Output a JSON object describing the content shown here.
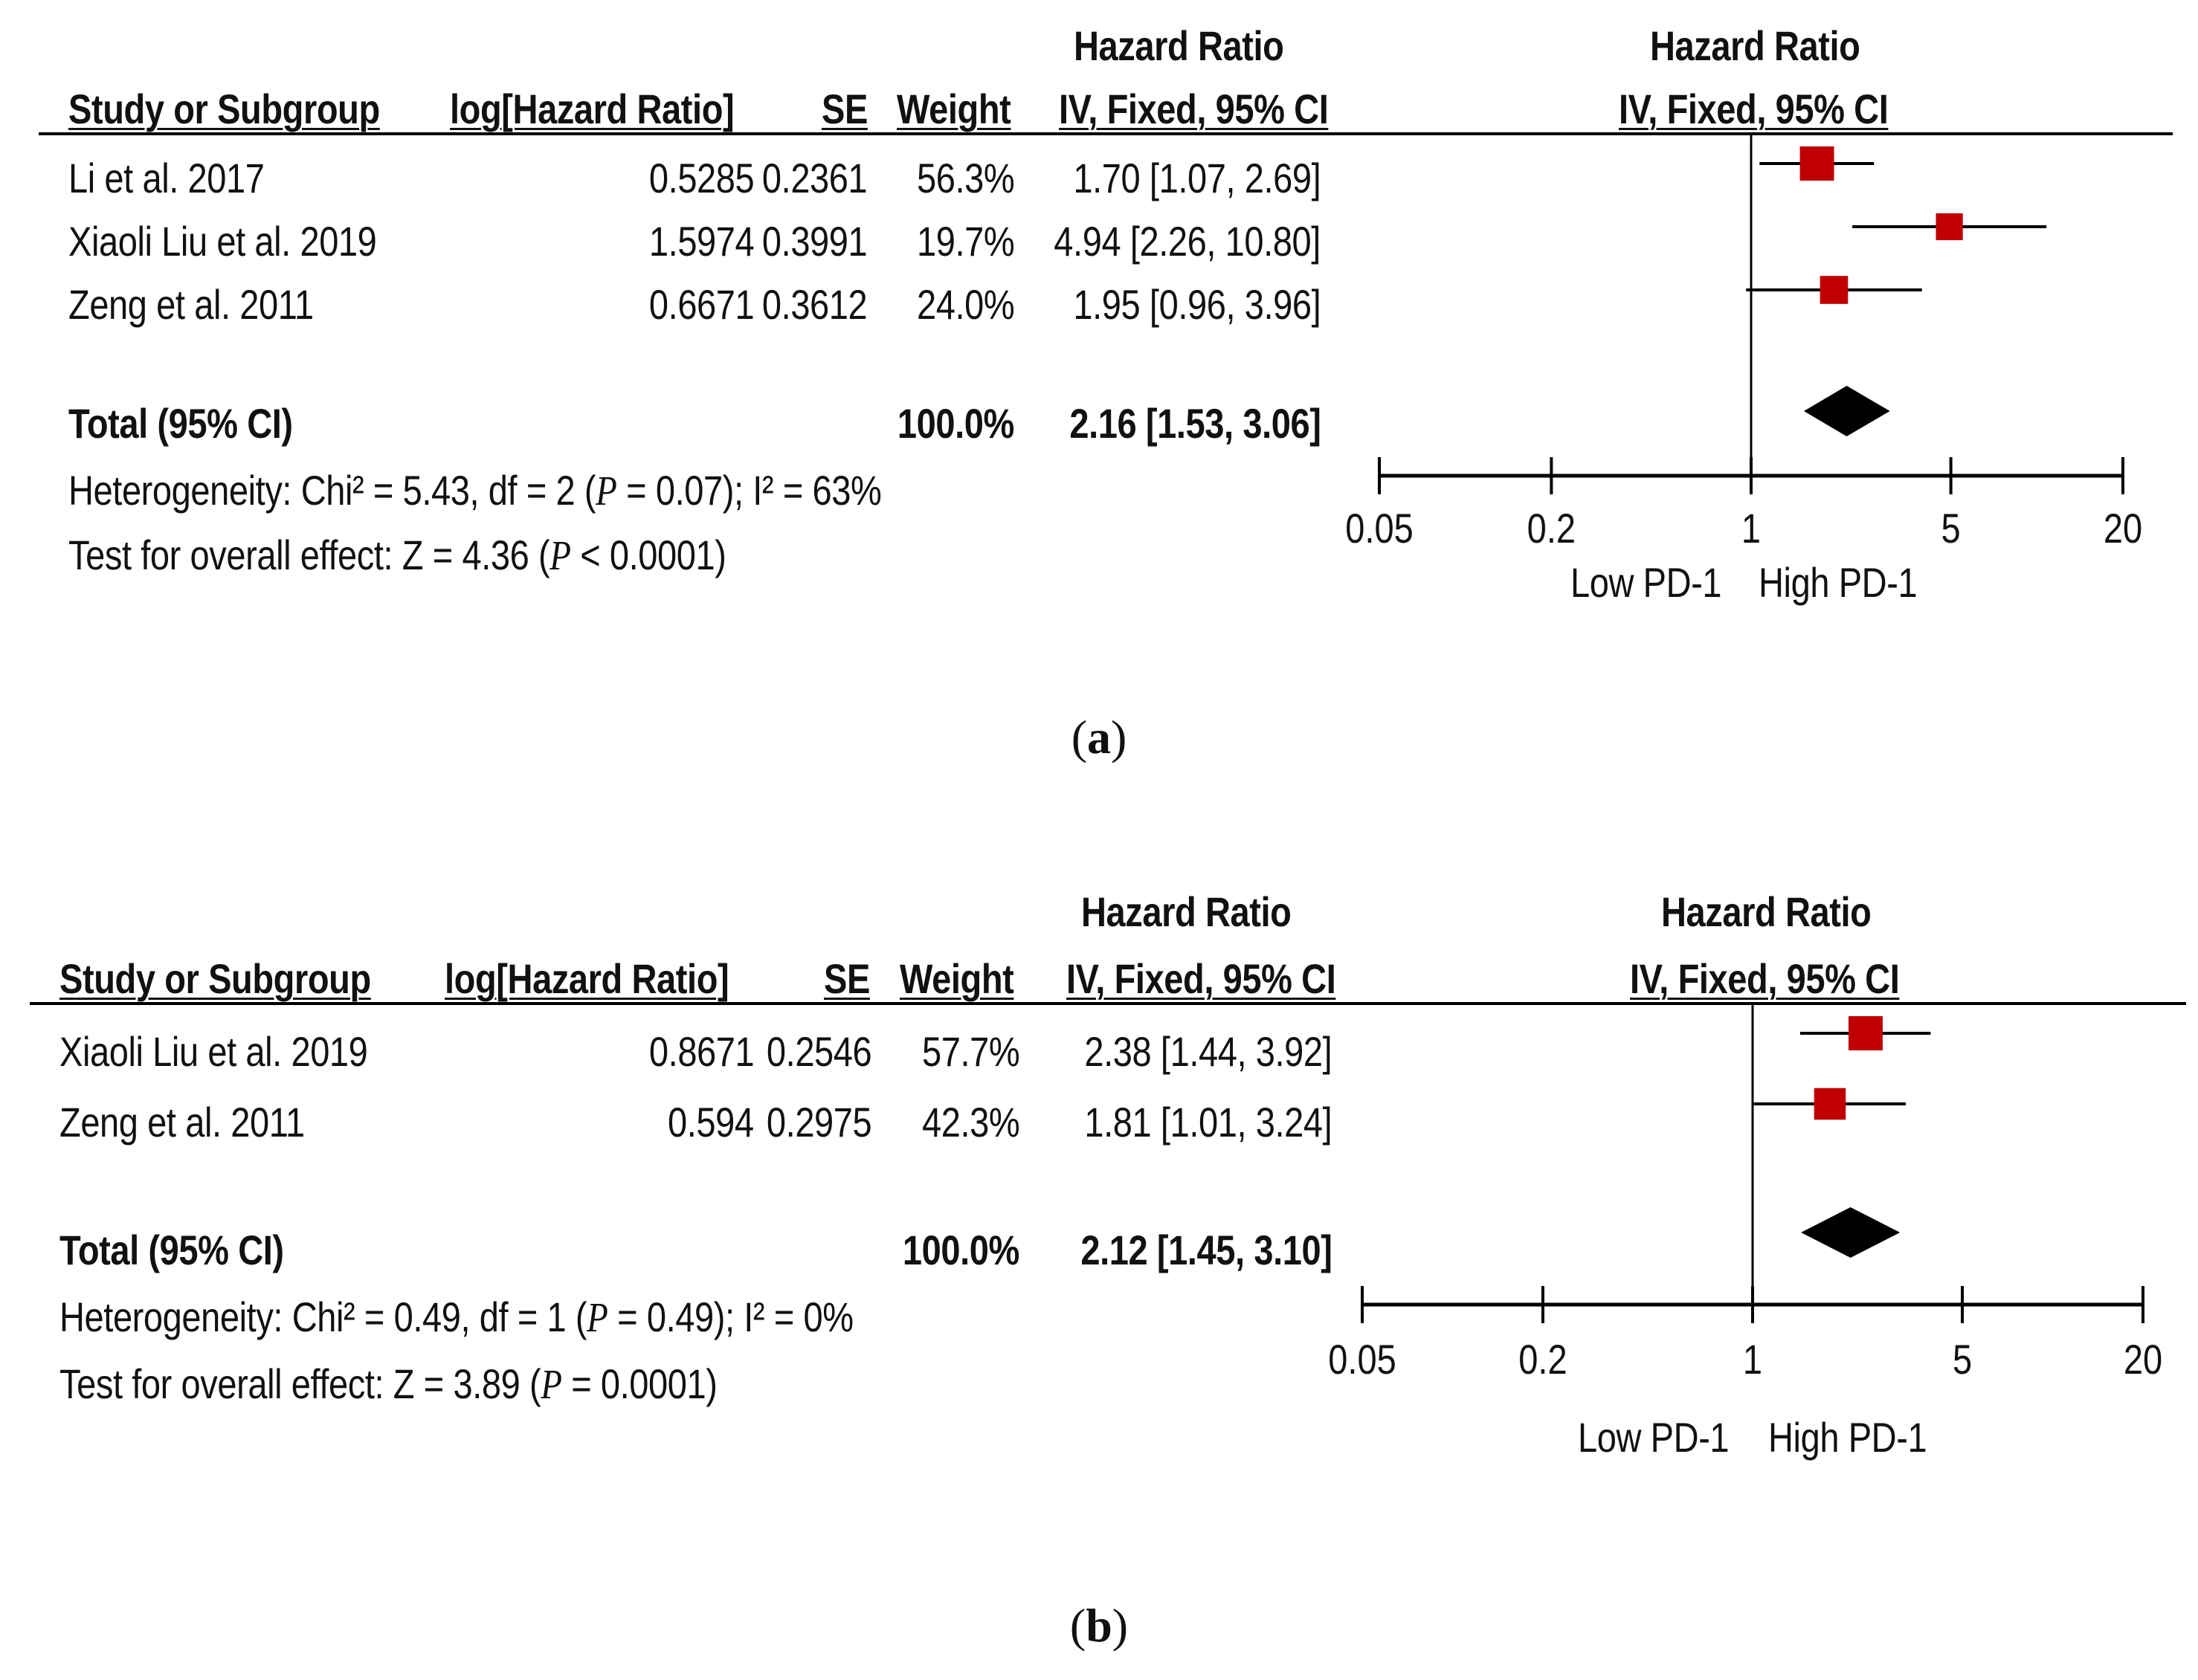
{
  "chart_data": [
    {
      "type": "forest",
      "caption": {
        "open": "(",
        "letter": "a",
        "close": ")"
      },
      "headers": {
        "hr_top": "Hazard Ratio",
        "study": "Study or Subgroup",
        "loghr": "log[Hazard Ratio]",
        "se": "SE",
        "weight": "Weight",
        "hr_ci": "IV, Fixed, 95% CI",
        "plot_top": "Hazard Ratio",
        "plot_sub": "IV, Fixed, 95% CI"
      },
      "studies": [
        {
          "name": "Li et al. 2017",
          "loghr": "0.5285",
          "se": "0.2361",
          "weight": "56.3%",
          "ci_text": "1.70 [1.07, 2.69]",
          "hr": 1.7,
          "lower": 1.07,
          "upper": 2.69,
          "weight_pct": 56.3
        },
        {
          "name": "Xiaoli Liu et al. 2019",
          "loghr": "1.5974",
          "se": "0.3991",
          "weight": "19.7%",
          "ci_text": "4.94 [2.26, 10.80]",
          "hr": 4.94,
          "lower": 2.26,
          "upper": 10.8,
          "weight_pct": 19.7
        },
        {
          "name": "Zeng et al. 2011",
          "loghr": "0.6671",
          "se": "0.3612",
          "weight": "24.0%",
          "ci_text": "1.95 [0.96, 3.96]",
          "hr": 1.95,
          "lower": 0.96,
          "upper": 3.96,
          "weight_pct": 24.0
        }
      ],
      "total": {
        "label": "Total (95% CI)",
        "weight": "100.0%",
        "ci_text": "2.16 [1.53, 3.06]",
        "hr": 2.16,
        "lower": 1.53,
        "upper": 3.06
      },
      "heterogeneity": {
        "pre": "Heterogeneity: Chi² = 5.43, df = 2 (",
        "p": "P",
        "post": " = 0.07); I² = 63%"
      },
      "overall": {
        "pre": "Test for overall effect: Z = 4.36 (",
        "p": "P",
        "post": " < 0.0001)"
      },
      "axis": {
        "scale": "log",
        "range": [
          0.05,
          20
        ],
        "ticks": [
          "0.05",
          "0.2",
          "1",
          "5",
          "20"
        ],
        "tick_values": [
          0.05,
          0.2,
          1,
          5,
          20
        ],
        "null_value": 1
      },
      "favours": {
        "left": "Low PD-1",
        "right": "High PD-1"
      },
      "colors": {
        "box": "#c00000",
        "line": "#000000"
      }
    },
    {
      "type": "forest",
      "caption": {
        "open": "(",
        "letter": "b",
        "close": ")"
      },
      "headers": {
        "hr_top": "Hazard Ratio",
        "study": "Study or Subgroup",
        "loghr": "log[Hazard Ratio]",
        "se": "SE",
        "weight": "Weight",
        "hr_ci": "IV, Fixed, 95% CI",
        "plot_top": "Hazard Ratio",
        "plot_sub": "IV, Fixed, 95% CI"
      },
      "studies": [
        {
          "name": "Xiaoli Liu et al. 2019",
          "loghr": "0.8671",
          "se": "0.2546",
          "weight": "57.7%",
          "ci_text": "2.38 [1.44, 3.92]",
          "hr": 2.38,
          "lower": 1.44,
          "upper": 3.92,
          "weight_pct": 57.7
        },
        {
          "name": "Zeng et al. 2011",
          "loghr": "0.594",
          "se": "0.2975",
          "weight": "42.3%",
          "ci_text": "1.81 [1.01, 3.24]",
          "hr": 1.81,
          "lower": 1.01,
          "upper": 3.24,
          "weight_pct": 42.3
        }
      ],
      "total": {
        "label": "Total (95% CI)",
        "weight": "100.0%",
        "ci_text": "2.12 [1.45, 3.10]",
        "hr": 2.12,
        "lower": 1.45,
        "upper": 3.1
      },
      "heterogeneity": {
        "pre": "Heterogeneity: Chi² = 0.49, df = 1 (",
        "p": "P",
        "post": " = 0.49); I² = 0%"
      },
      "overall": {
        "pre": "Test for overall effect: Z = 3.89 (",
        "p": "P",
        "post": " = 0.0001)"
      },
      "axis": {
        "scale": "log",
        "range": [
          0.05,
          20
        ],
        "ticks": [
          "0.05",
          "0.2",
          "1",
          "5",
          "20"
        ],
        "tick_values": [
          0.05,
          0.2,
          1,
          5,
          20
        ],
        "null_value": 1
      },
      "favours": {
        "left": "Low PD-1",
        "right": "High PD-1"
      },
      "colors": {
        "box": "#c00000",
        "line": "#000000"
      }
    }
  ]
}
